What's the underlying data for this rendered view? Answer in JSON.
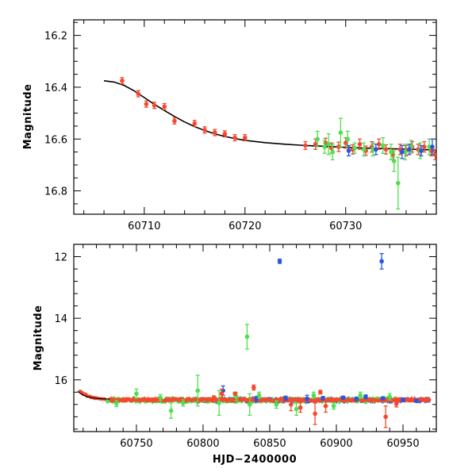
{
  "colors": {
    "red": "#f24a2e",
    "green": "#4fe04f",
    "blue": "#2a55e0",
    "axis": "#000000",
    "model": "#000000"
  },
  "chart_data": [
    {
      "name": "top-panel",
      "type": "scatter",
      "xlabel": "",
      "ylabel": "Magnitude",
      "xlim": [
        60703,
        60739
      ],
      "ylim": [
        16.89,
        16.14
      ],
      "xticks": [
        60710,
        60720,
        60730
      ],
      "xtick_labels": [
        "60710",
        "60720",
        "60730"
      ],
      "yticks": [
        16.2,
        16.4,
        16.6,
        16.8
      ],
      "ytick_labels": [
        "16.2",
        "16.4",
        "16.6",
        "16.8"
      ],
      "model_curve": {
        "x": [
          60706.0,
          60707,
          60708,
          60709,
          60710,
          60711,
          60712,
          60713,
          60714,
          60715,
          60716,
          60717,
          60718,
          60719,
          60720,
          60722,
          60724,
          60726,
          60728,
          60730,
          60732,
          60734,
          60736,
          60738,
          60739
        ],
        "y": [
          16.375,
          16.38,
          16.393,
          16.414,
          16.44,
          16.466,
          16.49,
          16.513,
          16.534,
          16.552,
          16.567,
          16.58,
          16.59,
          16.598,
          16.605,
          16.614,
          16.62,
          16.625,
          16.628,
          16.632,
          16.635,
          16.637,
          16.639,
          16.641,
          16.642
        ]
      },
      "series": [
        {
          "name": "red",
          "points": [
            {
              "x": 60707.8,
              "y": 16.375,
              "err": 0.012
            },
            {
              "x": 60709.4,
              "y": 16.425,
              "err": 0.012
            },
            {
              "x": 60710.2,
              "y": 16.465,
              "err": 0.012
            },
            {
              "x": 60711.0,
              "y": 16.47,
              "err": 0.012
            },
            {
              "x": 60712.0,
              "y": 16.475,
              "err": 0.012
            },
            {
              "x": 60713.0,
              "y": 16.53,
              "err": 0.012
            },
            {
              "x": 60715.0,
              "y": 16.54,
              "err": 0.012
            },
            {
              "x": 60716.0,
              "y": 16.565,
              "err": 0.012
            },
            {
              "x": 60717.0,
              "y": 16.575,
              "err": 0.012
            },
            {
              "x": 60718.0,
              "y": 16.58,
              "err": 0.012
            },
            {
              "x": 60719.0,
              "y": 16.595,
              "err": 0.012
            },
            {
              "x": 60720.0,
              "y": 16.595,
              "err": 0.012
            },
            {
              "x": 60726.0,
              "y": 16.625,
              "err": 0.015
            },
            {
              "x": 60727.0,
              "y": 16.62,
              "err": 0.02
            },
            {
              "x": 60728.0,
              "y": 16.615,
              "err": 0.018
            },
            {
              "x": 60728.6,
              "y": 16.635,
              "err": 0.02
            },
            {
              "x": 60729.3,
              "y": 16.63,
              "err": 0.018
            },
            {
              "x": 60730.0,
              "y": 16.615,
              "err": 0.02
            },
            {
              "x": 60730.7,
              "y": 16.64,
              "err": 0.018
            },
            {
              "x": 60731.4,
              "y": 16.62,
              "err": 0.02
            },
            {
              "x": 60732.0,
              "y": 16.645,
              "err": 0.018
            },
            {
              "x": 60732.6,
              "y": 16.63,
              "err": 0.02
            },
            {
              "x": 60733.3,
              "y": 16.62,
              "err": 0.02
            },
            {
              "x": 60734.0,
              "y": 16.64,
              "err": 0.018
            },
            {
              "x": 60734.7,
              "y": 16.66,
              "err": 0.02
            },
            {
              "x": 60735.4,
              "y": 16.64,
              "err": 0.02
            },
            {
              "x": 60736.0,
              "y": 16.645,
              "err": 0.02
            },
            {
              "x": 60736.6,
              "y": 16.63,
              "err": 0.02
            },
            {
              "x": 60737.2,
              "y": 16.64,
              "err": 0.02
            },
            {
              "x": 60737.8,
              "y": 16.63,
              "err": 0.02
            },
            {
              "x": 60738.5,
              "y": 16.645,
              "err": 0.02
            },
            {
              "x": 60738.9,
              "y": 16.66,
              "err": 0.02
            }
          ]
        },
        {
          "name": "green",
          "points": [
            {
              "x": 60727.2,
              "y": 16.6,
              "err": 0.03
            },
            {
              "x": 60727.9,
              "y": 16.63,
              "err": 0.025
            },
            {
              "x": 60728.3,
              "y": 16.62,
              "err": 0.04
            },
            {
              "x": 60728.7,
              "y": 16.65,
              "err": 0.03
            },
            {
              "x": 60729.5,
              "y": 16.575,
              "err": 0.055
            },
            {
              "x": 60730.2,
              "y": 16.6,
              "err": 0.03
            },
            {
              "x": 60730.9,
              "y": 16.635,
              "err": 0.02
            },
            {
              "x": 60731.8,
              "y": 16.64,
              "err": 0.025
            },
            {
              "x": 60732.7,
              "y": 16.64,
              "err": 0.025
            },
            {
              "x": 60733.7,
              "y": 16.625,
              "err": 0.03
            },
            {
              "x": 60734.5,
              "y": 16.65,
              "err": 0.03
            },
            {
              "x": 60734.8,
              "y": 16.685,
              "err": 0.04
            },
            {
              "x": 60735.2,
              "y": 16.77,
              "err": 0.1
            },
            {
              "x": 60735.9,
              "y": 16.65,
              "err": 0.03
            },
            {
              "x": 60736.5,
              "y": 16.63,
              "err": 0.025
            },
            {
              "x": 60737.4,
              "y": 16.645,
              "err": 0.03
            },
            {
              "x": 60738.3,
              "y": 16.63,
              "err": 0.03
            }
          ]
        },
        {
          "name": "blue",
          "points": [
            {
              "x": 60730.3,
              "y": 16.645,
              "err": 0.02
            },
            {
              "x": 60733.0,
              "y": 16.64,
              "err": 0.02
            },
            {
              "x": 60735.6,
              "y": 16.65,
              "err": 0.025
            },
            {
              "x": 60736.3,
              "y": 16.64,
              "err": 0.02
            },
            {
              "x": 60737.5,
              "y": 16.645,
              "err": 0.02
            },
            {
              "x": 60738.6,
              "y": 16.63,
              "err": 0.03
            }
          ]
        }
      ]
    },
    {
      "name": "bottom-panel",
      "type": "scatter",
      "xlabel": "HJD−2400000",
      "ylabel": "Magnitude",
      "xlim": [
        60703,
        60975
      ],
      "ylim": [
        17.68,
        11.6
      ],
      "xticks": [
        60750,
        60800,
        60850,
        60900,
        60950
      ],
      "xtick_labels": [
        "60750",
        "60800",
        "60850",
        "60900",
        "60950"
      ],
      "yticks": [
        12,
        14,
        16
      ],
      "ytick_labels": [
        "12",
        "14",
        "16"
      ],
      "series": [
        {
          "name": "blue",
          "points": [
            {
              "x": 60857.5,
              "y": 12.15,
              "err": 0.07
            },
            {
              "x": 60934.0,
              "y": 12.15,
              "err": 0.25
            },
            {
              "x": 60815.0,
              "y": 16.35,
              "err": 0.15
            },
            {
              "x": 60840.0,
              "y": 16.62,
              "err": 0.08
            },
            {
              "x": 60862.0,
              "y": 16.6,
              "err": 0.07
            },
            {
              "x": 60878.0,
              "y": 16.62,
              "err": 0.12
            },
            {
              "x": 60890.0,
              "y": 16.6,
              "err": 0.06
            },
            {
              "x": 60905.0,
              "y": 16.58,
              "err": 0.05
            },
            {
              "x": 60915.0,
              "y": 16.62,
              "err": 0.06
            },
            {
              "x": 60922.0,
              "y": 16.55,
              "err": 0.06
            },
            {
              "x": 60935.0,
              "y": 16.6,
              "err": 0.05
            },
            {
              "x": 60950.0,
              "y": 16.65,
              "err": 0.06
            },
            {
              "x": 60960.0,
              "y": 16.68,
              "err": 0.05
            }
          ]
        },
        {
          "name": "green",
          "points": [
            {
              "x": 60833.0,
              "y": 14.6,
              "err": 0.4
            },
            {
              "x": 60735.0,
              "y": 16.77,
              "err": 0.1
            },
            {
              "x": 60750.0,
              "y": 16.45,
              "err": 0.15
            },
            {
              "x": 60768.0,
              "y": 16.58,
              "err": 0.1
            },
            {
              "x": 60776.0,
              "y": 17.0,
              "err": 0.25
            },
            {
              "x": 60785.0,
              "y": 16.75,
              "err": 0.1
            },
            {
              "x": 60796.0,
              "y": 16.35,
              "err": 0.5
            },
            {
              "x": 60812.0,
              "y": 16.75,
              "err": 0.4
            },
            {
              "x": 60825.0,
              "y": 16.55,
              "err": 0.12
            },
            {
              "x": 60835.0,
              "y": 16.8,
              "err": 0.35
            },
            {
              "x": 60842.0,
              "y": 16.5,
              "err": 0.1
            },
            {
              "x": 60855.0,
              "y": 16.8,
              "err": 0.12
            },
            {
              "x": 60870.0,
              "y": 16.95,
              "err": 0.2
            },
            {
              "x": 60883.0,
              "y": 16.5,
              "err": 0.1
            },
            {
              "x": 60898.0,
              "y": 16.85,
              "err": 0.1
            },
            {
              "x": 60918.0,
              "y": 16.5,
              "err": 0.1
            },
            {
              "x": 60940.0,
              "y": 16.55,
              "err": 0.1
            }
          ]
        },
        {
          "name": "red",
          "points": [
            {
              "x": 60838.0,
              "y": 16.25,
              "err": 0.08
            },
            {
              "x": 60814.0,
              "y": 16.45,
              "err": 0.15
            },
            {
              "x": 60808.0,
              "y": 16.6,
              "err": 0.08
            },
            {
              "x": 60824.0,
              "y": 16.45,
              "err": 0.05
            },
            {
              "x": 60866.0,
              "y": 16.8,
              "err": 0.2
            },
            {
              "x": 60873.0,
              "y": 16.9,
              "err": 0.15
            },
            {
              "x": 60884.0,
              "y": 17.1,
              "err": 0.35
            },
            {
              "x": 60888.0,
              "y": 16.4,
              "err": 0.06
            },
            {
              "x": 60892.0,
              "y": 16.85,
              "err": 0.2
            },
            {
              "x": 60937.0,
              "y": 17.2,
              "err": 0.35
            },
            {
              "x": 60945.0,
              "y": 16.78,
              "err": 0.1
            }
          ]
        }
      ]
    }
  ]
}
